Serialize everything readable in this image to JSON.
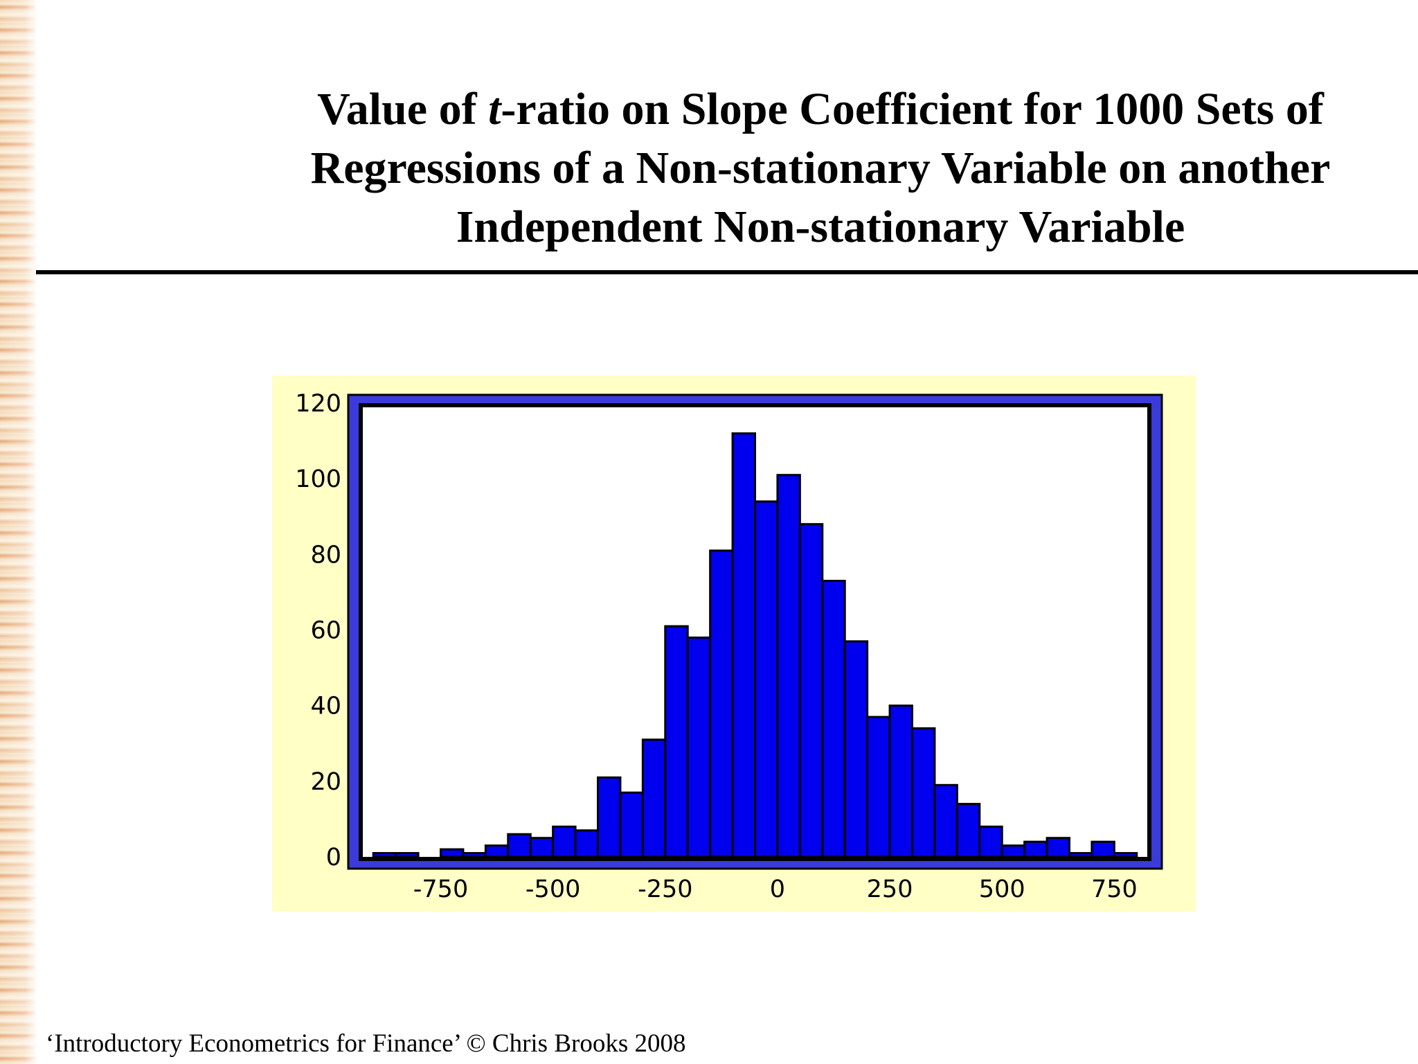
{
  "slide": {
    "title_line1_pre": "Value of ",
    "title_line1_italic": "t",
    "title_line1_post": "-ratio on Slope Coefficient for 1000 Sets of",
    "title_line2": "Regressions of a Non-stationary Variable on another",
    "title_line3": "Independent Non-stationary Variable",
    "footer": "‘Introductory Econometrics for Finance’ © Chris Brooks 2008"
  },
  "colors": {
    "panel_bg": "#ffffc6",
    "frame": "#3b3bdc",
    "bar": "#0000ee",
    "bar_edge": "#000000",
    "rule": "#000000"
  },
  "chart_data": {
    "type": "bar",
    "title": "",
    "xlabel": "",
    "ylabel": "",
    "bin_width": 50,
    "xlim": [
      -925,
      825
    ],
    "ylim": [
      0,
      120
    ],
    "x_ticks": [
      -750,
      -500,
      -250,
      0,
      250,
      500,
      750
    ],
    "y_ticks": [
      0,
      20,
      40,
      60,
      80,
      100,
      120
    ],
    "grid": false,
    "bin_starts": [
      -900,
      -850,
      -800,
      -750,
      -700,
      -650,
      -600,
      -550,
      -500,
      -450,
      -400,
      -350,
      -300,
      -250,
      -200,
      -150,
      -100,
      -50,
      0,
      50,
      100,
      150,
      200,
      250,
      300,
      350,
      400,
      450,
      500,
      550,
      600,
      650,
      700,
      750
    ],
    "values": [
      1,
      1,
      0,
      2,
      1,
      3,
      6,
      5,
      8,
      7,
      21,
      17,
      31,
      61,
      58,
      81,
      112,
      94,
      101,
      88,
      73,
      57,
      37,
      40,
      34,
      19,
      14,
      8,
      3,
      4,
      5,
      1,
      4,
      1
    ]
  }
}
